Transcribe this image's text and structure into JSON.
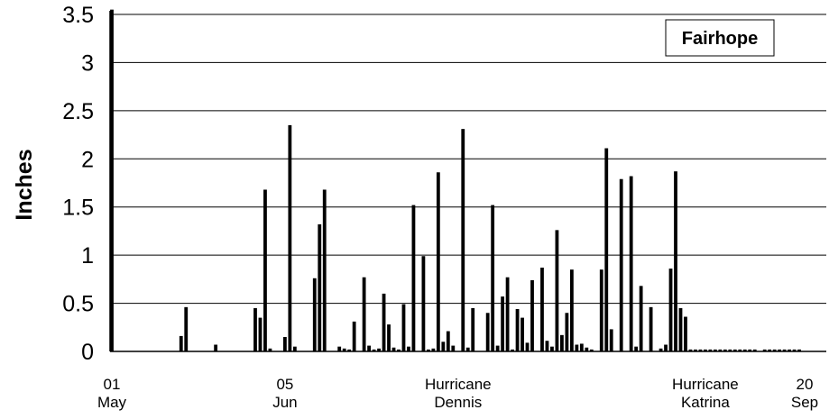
{
  "chart_data": {
    "type": "bar",
    "title": "",
    "ylabel": "Inches",
    "xlabel": "",
    "ylim": [
      0,
      3.5
    ],
    "yticks": [
      "0",
      "0.5",
      "1",
      "1.5",
      "2",
      "2.5",
      "3",
      "3.5"
    ],
    "grid": true,
    "legend": {
      "label": "Fairhope",
      "placement": "top-right"
    },
    "x_range_days": [
      0,
      143
    ],
    "x_labels": [
      {
        "day": 0,
        "lines": [
          "01",
          "May"
        ]
      },
      {
        "day": 35,
        "lines": [
          "05",
          "Jun"
        ]
      },
      {
        "day": 70,
        "lines": [
          "Hurricane",
          "Dennis"
        ]
      },
      {
        "day": 120,
        "lines": [
          "Hurricane",
          "Katrina"
        ]
      },
      {
        "day": 142,
        "lines": [
          "20",
          "Sep"
        ]
      }
    ],
    "series": [
      {
        "days": [
          0,
          14,
          15,
          21,
          29,
          30,
          31,
          32,
          35,
          36,
          37,
          41,
          42,
          43,
          46,
          47,
          48,
          49,
          51,
          52,
          53,
          54,
          55,
          56,
          57,
          58,
          59,
          60,
          61,
          63,
          64,
          65,
          66,
          67,
          68,
          69,
          71,
          72,
          73,
          76,
          77,
          78,
          79,
          80,
          81,
          82,
          83,
          84,
          85,
          87,
          88,
          89,
          90,
          91,
          92,
          93,
          94,
          95,
          96,
          97,
          99,
          100,
          101,
          103,
          105,
          106,
          107,
          109,
          111,
          112,
          113,
          114,
          115,
          116,
          117,
          118,
          119,
          120,
          121,
          122,
          123,
          124,
          125,
          126,
          127,
          128,
          129,
          130,
          132,
          133,
          134,
          135,
          136,
          137,
          138,
          139
        ],
        "values": [
          3.55,
          0.16,
          0.46,
          0.07,
          0.45,
          0.35,
          1.68,
          0.03,
          0.15,
          2.35,
          0.05,
          0.76,
          1.32,
          1.68,
          0.05,
          0.03,
          0.02,
          0.31,
          0.77,
          0.06,
          0.02,
          0.03,
          0.6,
          0.28,
          0.04,
          0.02,
          0.49,
          0.05,
          1.52,
          0.99,
          0.02,
          0.03,
          1.86,
          0.1,
          0.21,
          0.06,
          2.31,
          0.04,
          0.45,
          0.4,
          1.52,
          0.06,
          0.57,
          0.77,
          0.02,
          0.44,
          0.35,
          0.09,
          0.74,
          0.87,
          0.11,
          0.05,
          1.26,
          0.17,
          0.4,
          0.85,
          0.07,
          0.08,
          0.04,
          0.02,
          0.85,
          2.11,
          0.23,
          1.79,
          1.82,
          0.05,
          0.68,
          0.46,
          0.03,
          0.07,
          0.86,
          1.87,
          0.45,
          0.36,
          0.02,
          0.02,
          0.02,
          0.02,
          0.02,
          0.02,
          0.02,
          0.02,
          0.02,
          0.02,
          0.02,
          0.02,
          0.02,
          0.02,
          0.02,
          0.02,
          0.02,
          0.02,
          0.02,
          0.02,
          0.02,
          0.02
        ]
      }
    ]
  }
}
